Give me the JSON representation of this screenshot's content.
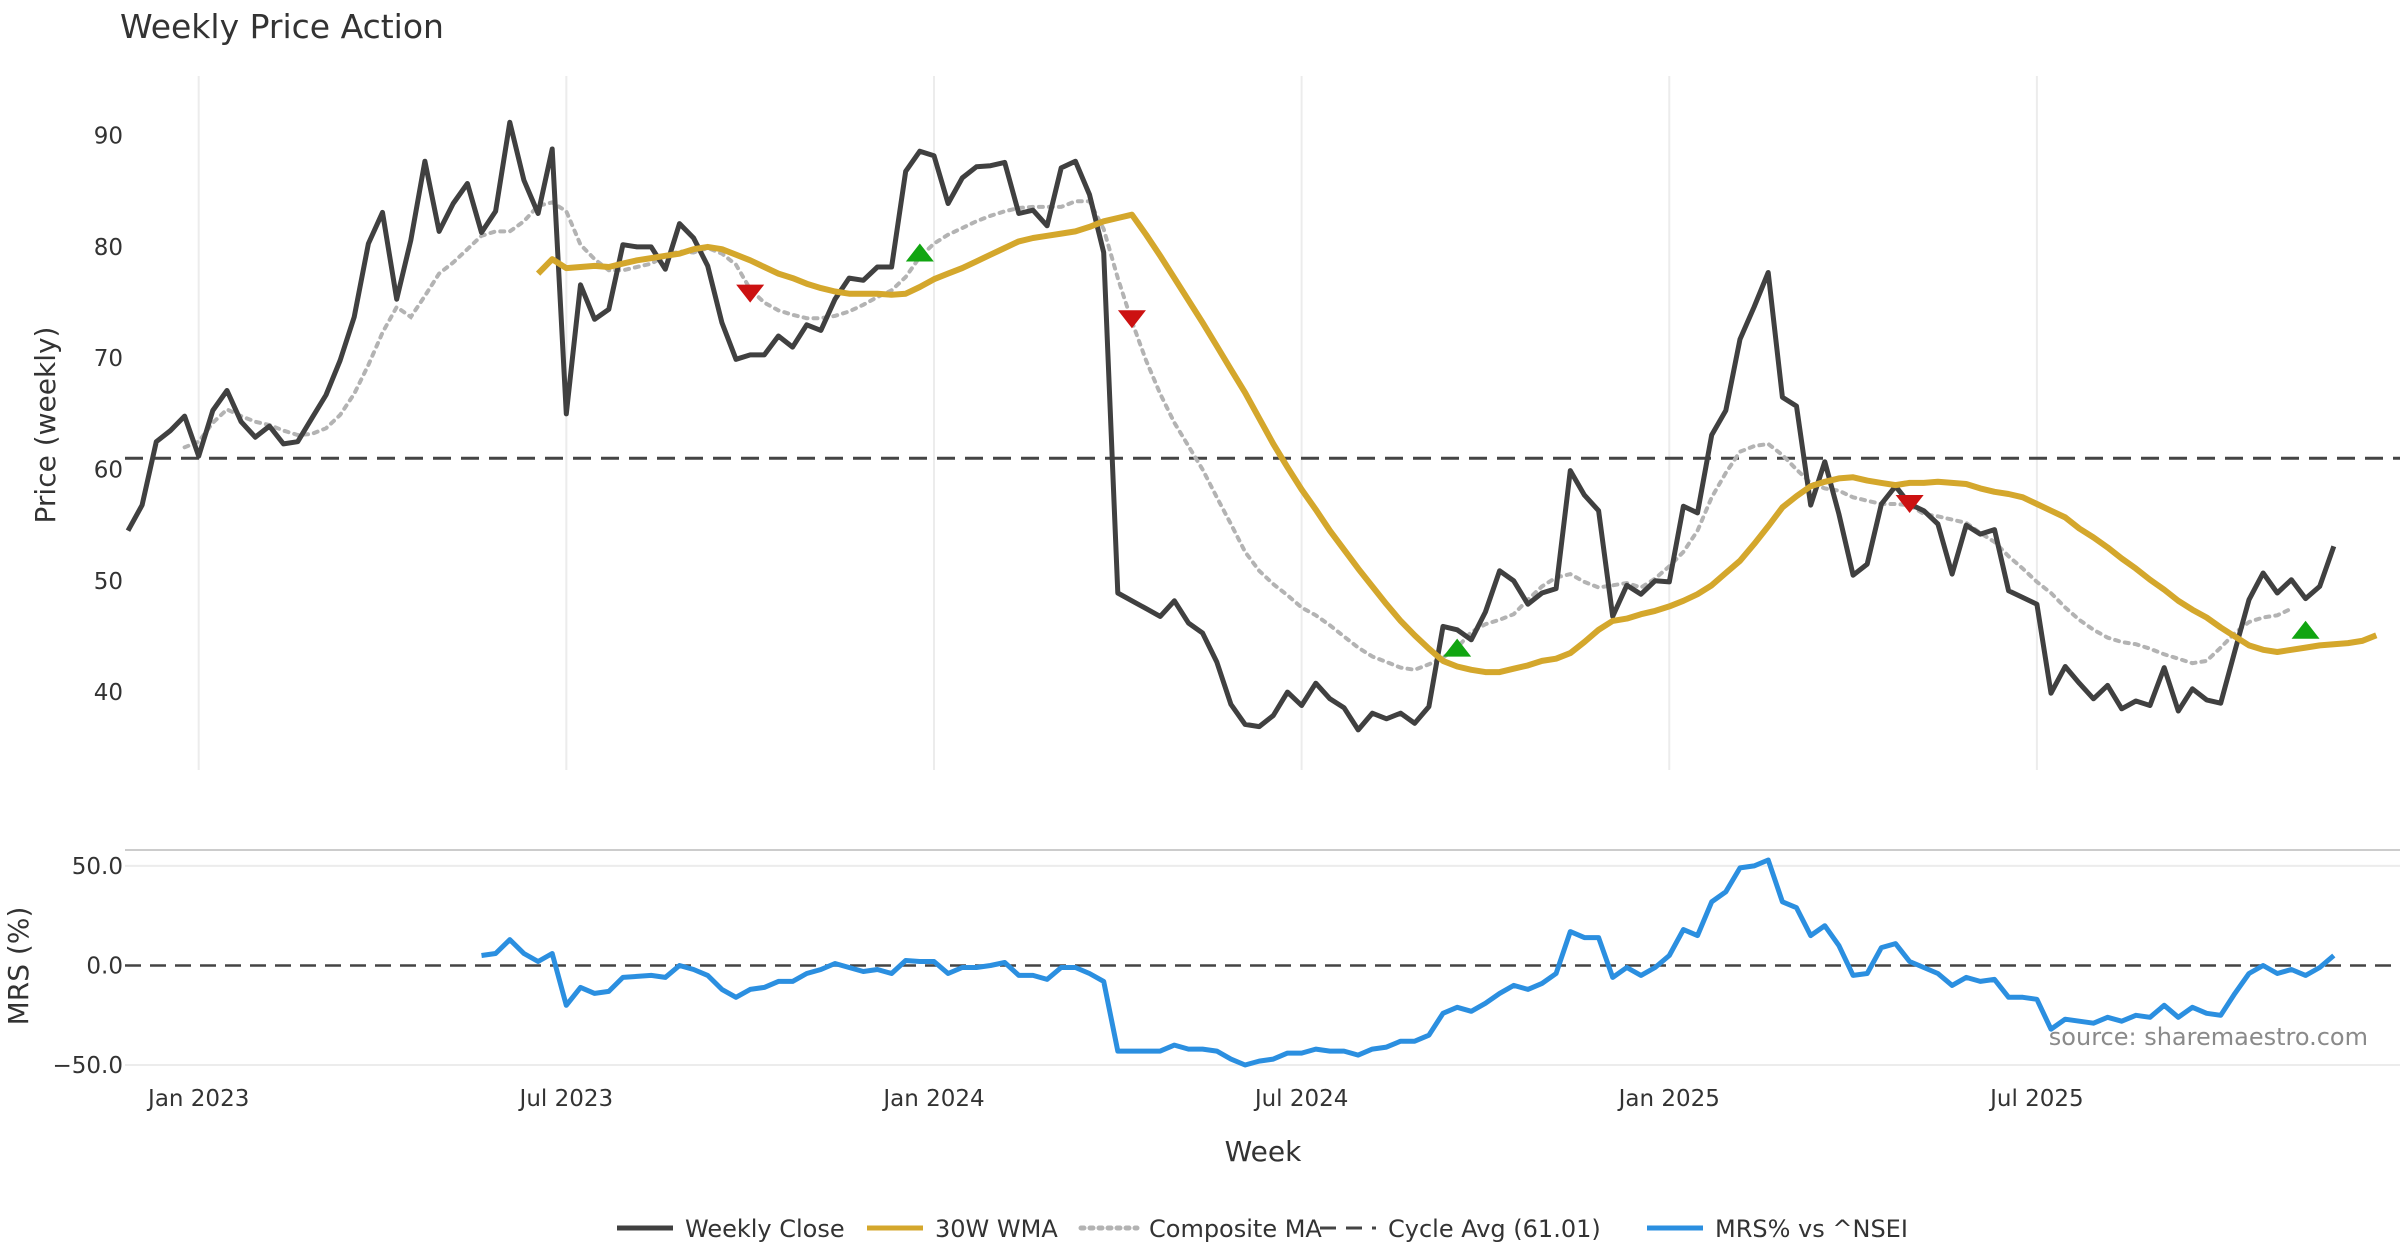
{
  "chart_data": {
    "type": "line",
    "title": "Weekly Price Action",
    "xlabel": "Week",
    "source": "source: sharemaestro.com",
    "price_panel": {
      "ylabel": "Price (weekly)",
      "ylim": [
        33,
        95
      ],
      "yticks": [
        40,
        50,
        60,
        70,
        80,
        90
      ],
      "series": [
        {
          "name": "Weekly Close",
          "color": "#404040",
          "style": "solid",
          "values": [
            54.5,
            56.8,
            62.5,
            63.5,
            64.8,
            61.2,
            65.3,
            67.1,
            64.3,
            62.9,
            63.9,
            62.3,
            62.5,
            64.6,
            66.7,
            69.8,
            73.7,
            80.3,
            83.1,
            75.3,
            80.6,
            87.7,
            81.4,
            83.9,
            85.7,
            81.3,
            83.2,
            91.2,
            86.0,
            83.0,
            88.8,
            65.0,
            76.6,
            73.5,
            74.4,
            80.2,
            80.0,
            80.0,
            78.0,
            82.1,
            80.8,
            78.3,
            73.2,
            69.9,
            70.3,
            70.3,
            72.0,
            71.0,
            73.0,
            72.5,
            75.3,
            77.2,
            77.0,
            78.2,
            78.2,
            86.8,
            88.6,
            88.2,
            83.9,
            86.2,
            87.2,
            87.3,
            87.6,
            83.0,
            83.3,
            81.9,
            87.1,
            87.7,
            84.7,
            79.5,
            48.9,
            48.2,
            47.5,
            46.8,
            48.2,
            46.2,
            45.3,
            42.7,
            38.9,
            37.1,
            36.9,
            37.9,
            40.0,
            38.8,
            40.8,
            39.4,
            38.6,
            36.6,
            38.1,
            37.6,
            38.1,
            37.2,
            38.7,
            45.9,
            45.6,
            44.7,
            47.2,
            50.9,
            50.0,
            47.9,
            48.9,
            49.3,
            59.9,
            57.7,
            56.3,
            46.8,
            49.6,
            48.8,
            50.0,
            49.9,
            56.7,
            56.1,
            63.1,
            65.3,
            71.7,
            74.6,
            77.7,
            66.5,
            65.7,
            56.8,
            60.7,
            56.0,
            50.5,
            51.5,
            56.9,
            58.5,
            56.9,
            56.3,
            55.1,
            50.6,
            55.0,
            54.2,
            54.6,
            49.1,
            48.5,
            47.9,
            39.9,
            42.3,
            40.8,
            39.4,
            40.6,
            38.5,
            39.2,
            38.8,
            42.2,
            38.3,
            40.3,
            39.3,
            39.0,
            43.7,
            48.3,
            50.7,
            48.9,
            50.1,
            48.4,
            49.5,
            53.1
          ]
        },
        {
          "name": "30W WMA",
          "color": "#d4a72c",
          "style": "solid",
          "start_index": 29,
          "values": [
            77.6,
            78.9,
            78.1,
            78.2,
            78.3,
            78.2,
            78.5,
            78.8,
            79.0,
            79.2,
            79.4,
            79.8,
            80.0,
            79.8,
            79.3,
            78.8,
            78.2,
            77.6,
            77.2,
            76.7,
            76.3,
            76.0,
            75.8,
            75.8,
            75.8,
            75.7,
            75.8,
            76.4,
            77.1,
            77.6,
            78.1,
            78.7,
            79.3,
            79.9,
            80.5,
            80.8,
            81.0,
            81.2,
            81.4,
            81.8,
            82.3,
            82.6,
            82.9,
            81.1,
            79.2,
            77.2,
            75.2,
            73.2,
            71.1,
            69.0,
            66.9,
            64.6,
            62.3,
            60.2,
            58.2,
            56.4,
            54.5,
            52.8,
            51.1,
            49.5,
            47.9,
            46.4,
            45.1,
            43.9,
            42.8,
            42.3,
            42.0,
            41.8,
            41.8,
            42.1,
            42.4,
            42.8,
            43.0,
            43.5,
            44.5,
            45.6,
            46.4,
            46.6,
            47.0,
            47.3,
            47.7,
            48.2,
            48.8,
            49.6,
            50.7,
            51.8,
            53.3,
            54.9,
            56.6,
            57.6,
            58.5,
            58.9,
            59.2,
            59.3,
            59.0,
            58.8,
            58.6,
            58.8,
            58.8,
            58.9,
            58.8,
            58.7,
            58.3,
            58.0,
            57.8,
            57.5,
            56.9,
            56.3,
            55.7,
            54.7,
            53.9,
            53.0,
            52.0,
            51.1,
            50.1,
            49.2,
            48.2,
            47.4,
            46.7,
            45.8,
            45.0,
            44.2,
            43.8,
            43.6,
            43.8,
            44.0,
            44.2,
            44.3,
            44.4,
            44.6,
            45.1
          ]
        },
        {
          "name": "Composite MA",
          "color": "#b3b3b3",
          "style": "dotted",
          "start_index": 4,
          "values": [
            62.0,
            62.5,
            64.2,
            65.4,
            64.8,
            64.3,
            64.0,
            63.5,
            63.1,
            63.2,
            63.7,
            64.9,
            66.8,
            69.4,
            72.3,
            74.6,
            73.7,
            75.6,
            77.6,
            78.6,
            79.8,
            81.0,
            81.4,
            81.4,
            82.3,
            83.7,
            84.0,
            83.2,
            80.2,
            78.9,
            77.9,
            77.9,
            78.2,
            78.5,
            79.2,
            79.6,
            79.5,
            79.9,
            79.4,
            78.4,
            76.2,
            75.0,
            74.3,
            73.9,
            73.6,
            73.6,
            73.8,
            74.2,
            74.8,
            75.5,
            76.1,
            77.3,
            79.1,
            80.3,
            81.1,
            81.7,
            82.3,
            82.8,
            83.2,
            83.5,
            83.6,
            83.6,
            83.6,
            84.1,
            84.1,
            81.6,
            77.2,
            73.3,
            69.8,
            66.8,
            64.2,
            62.1,
            60.0,
            57.5,
            55.1,
            52.6,
            50.9,
            49.7,
            48.7,
            47.6,
            46.9,
            46.0,
            45.0,
            44.0,
            43.2,
            42.7,
            42.2,
            42.0,
            42.5,
            43.1,
            44.0,
            45.4,
            46.1,
            46.5,
            47.0,
            48.3,
            49.5,
            50.3,
            50.6,
            49.9,
            49.4,
            49.6,
            49.8,
            49.4,
            50.2,
            51.3,
            52.6,
            54.5,
            57.5,
            59.7,
            61.6,
            62.1,
            62.3,
            61.3,
            60.0,
            58.8,
            58.3,
            58.1,
            57.5,
            57.2,
            56.9,
            56.9,
            56.8,
            56.0,
            55.8,
            55.5,
            55.2,
            54.3,
            53.5,
            52.2,
            51.1,
            49.9,
            48.9,
            47.6,
            46.5,
            45.6,
            44.9,
            44.5,
            44.3,
            43.9,
            43.4,
            43.0,
            42.6,
            42.8,
            44.0,
            45.3,
            46.3,
            46.7,
            46.9,
            47.5
          ]
        }
      ],
      "cycle_avg": {
        "name": "Cycle Avg (61.01)",
        "value": 61.01,
        "color": "#444444",
        "style": "dashed"
      },
      "signals": [
        {
          "type": "buy",
          "index": 56,
          "value": 79.5,
          "color": "#11a511"
        },
        {
          "type": "sell",
          "index": 44,
          "value": 75.8,
          "color": "#cc1111"
        },
        {
          "type": "sell",
          "index": 71,
          "value": 73.5,
          "color": "#cc1111"
        },
        {
          "type": "buy",
          "index": 94,
          "value": 44.0,
          "color": "#11a511"
        },
        {
          "type": "sell",
          "index": 126,
          "value": 56.9,
          "color": "#cc1111"
        },
        {
          "type": "buy",
          "index": 154,
          "value": 45.6,
          "color": "#11a511"
        }
      ]
    },
    "mrs_panel": {
      "ylabel": "MRS (%)",
      "ylim": [
        -55,
        58
      ],
      "yticks": [
        -50,
        0,
        50
      ],
      "ytick_labels": [
        "−50.0",
        "0.0",
        "50.0"
      ],
      "zero_line": {
        "value": 0,
        "color": "#444444",
        "style": "dashed"
      },
      "series": {
        "name": "MRS% vs ^NSEI",
        "color": "#2b8fe0",
        "start_index": 25,
        "values": [
          5.0,
          6.0,
          13.0,
          6.0,
          2.0,
          6.0,
          -20.0,
          -11.0,
          -14.0,
          -13.0,
          -6.0,
          -5.5,
          -5.0,
          -6.0,
          0.0,
          -2.0,
          -5.0,
          -12.0,
          -16.0,
          -12.0,
          -11.0,
          -8.0,
          -8.0,
          -4.0,
          -2.0,
          1.0,
          -1.0,
          -3.0,
          -2.0,
          -4.0,
          2.5,
          2.0,
          2.0,
          -4.0,
          -1.0,
          -1.0,
          0.0,
          1.5,
          -5.0,
          -5.0,
          -7.0,
          -1.0,
          -1.0,
          -4.0,
          -8.0,
          -43.0,
          -43.0,
          -43.0,
          -43.0,
          -40.0,
          -42.0,
          -42.0,
          -43.0,
          -47.0,
          -50.0,
          -48.0,
          -47.0,
          -44.0,
          -44.0,
          -42.0,
          -43.0,
          -43.0,
          -45.0,
          -42.0,
          -41.0,
          -38.0,
          -38.0,
          -35.0,
          -24.0,
          -21.0,
          -23.0,
          -19.0,
          -14.0,
          -10.0,
          -12.0,
          -9.0,
          -4.0,
          17.0,
          14.0,
          14.0,
          -6.0,
          -1.0,
          -5.0,
          -1.0,
          5.0,
          18.0,
          15.0,
          32.0,
          37.0,
          49.0,
          50.0,
          53.0,
          32.0,
          29.0,
          15.0,
          20.0,
          10.0,
          -5.0,
          -4.0,
          9.0,
          11.0,
          2.0,
          -1.0,
          -4.0,
          -10.0,
          -6.0,
          -8.0,
          -7.0,
          -16.0,
          -16.0,
          -17.0,
          -32.0,
          -27.0,
          -28.0,
          -29.0,
          -26.0,
          -28.0,
          -25.0,
          -26.0,
          -20.0,
          -26.0,
          -21.0,
          -24.0,
          -25.0,
          -14.0,
          -4.0,
          0.0,
          -4.0,
          -2.0,
          -5.0,
          -1.0,
          5.0
        ]
      }
    },
    "x_axis": {
      "ticks": [
        {
          "label": "Jan 2023",
          "index": 5
        },
        {
          "label": "Jul 2023",
          "index": 31
        },
        {
          "label": "Jan 2024",
          "index": 57
        },
        {
          "label": "Jul 2024",
          "index": 83
        },
        {
          "label": "Jan 2025",
          "index": 109
        },
        {
          "label": "Jul 2025",
          "index": 135
        }
      ]
    },
    "legend": [
      {
        "label": "Weekly Close",
        "color": "#404040",
        "style": "solid"
      },
      {
        "label": "30W WMA",
        "color": "#d4a72c",
        "style": "solid"
      },
      {
        "label": "Composite MA",
        "color": "#b3b3b3",
        "style": "dotted"
      },
      {
        "label": "Cycle Avg (61.01)",
        "color": "#444444",
        "style": "dashed"
      },
      {
        "label": "MRS% vs ^NSEI",
        "color": "#2b8fe0",
        "style": "solid"
      }
    ]
  }
}
